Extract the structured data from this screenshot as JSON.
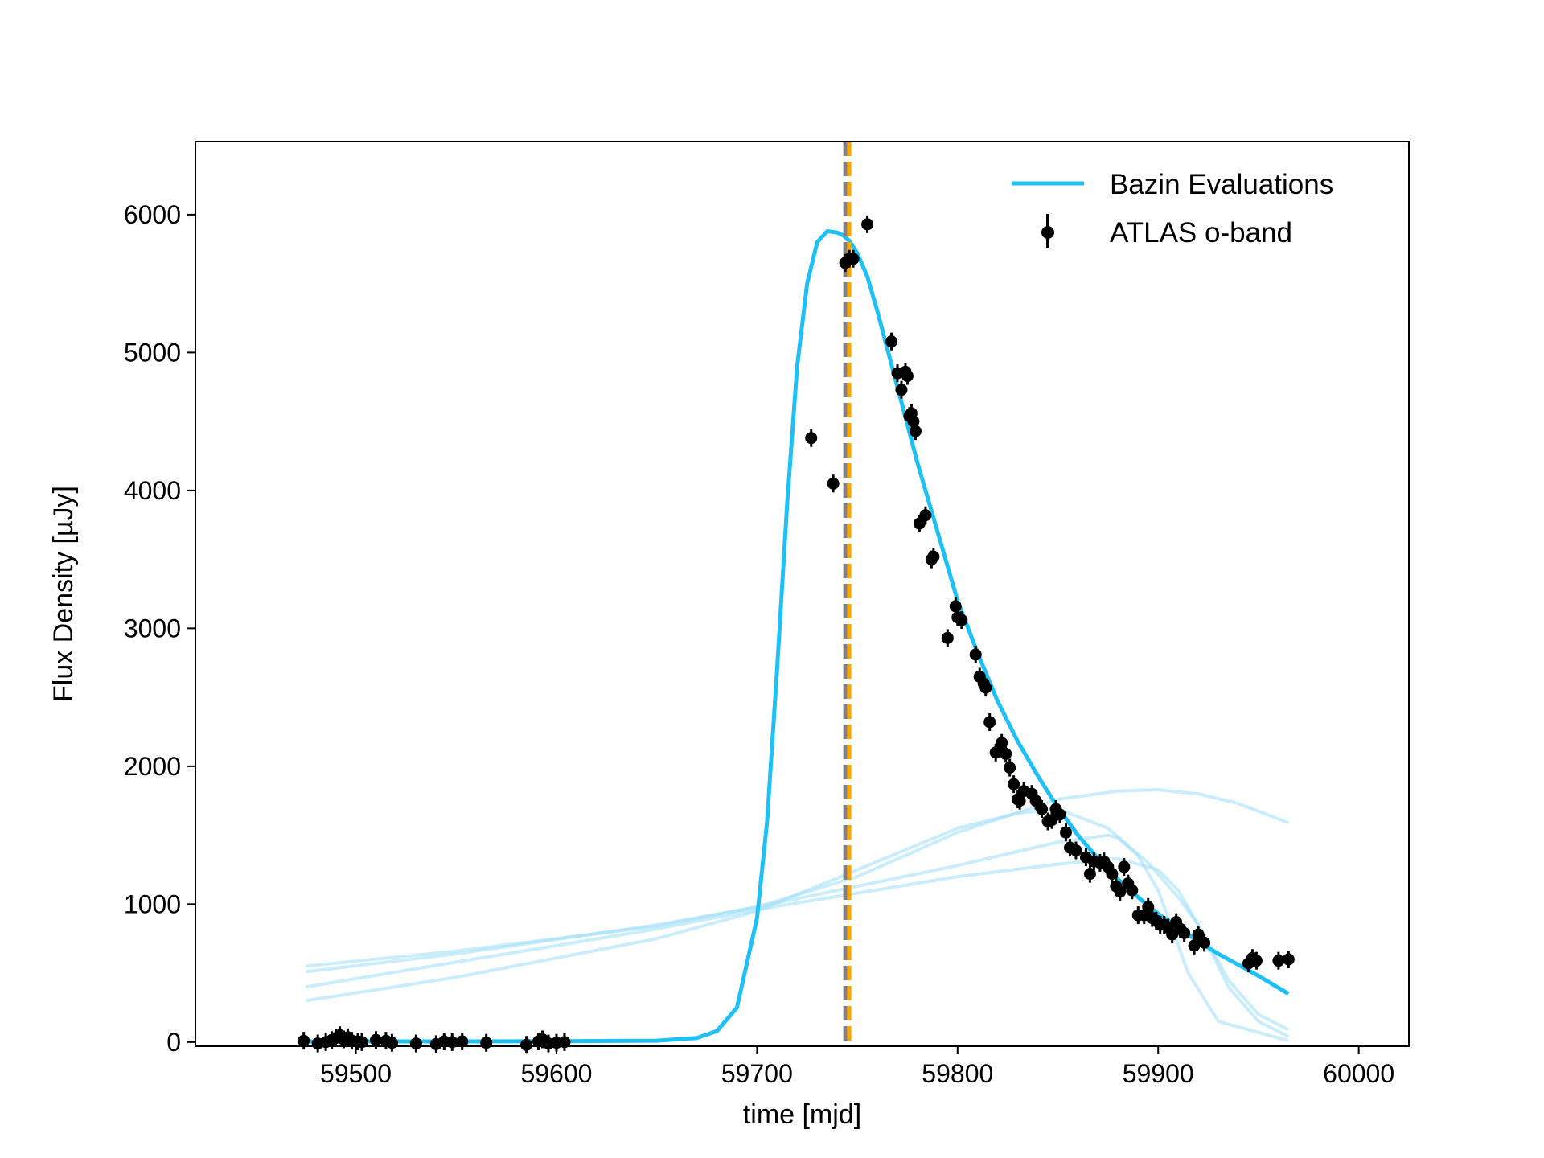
{
  "chart_data": {
    "type": "scatter",
    "title": "",
    "xlabel": "time [mjd]",
    "ylabel": "Flux Density [µJy]",
    "xlim": [
      59420,
      60025
    ],
    "ylim": [
      -30,
      6530
    ],
    "xticks": [
      59500,
      59600,
      59700,
      59800,
      59900,
      60000
    ],
    "xtick_labels": [
      "59500",
      "59600",
      "59700",
      "59800",
      "59900",
      "60000"
    ],
    "yticks": [
      0,
      1000,
      2000,
      3000,
      4000,
      5000,
      6000
    ],
    "ytick_labels": [
      "0",
      "1000",
      "2000",
      "3000",
      "4000",
      "5000",
      "6000"
    ],
    "grid": false,
    "legend_position": "top-right",
    "colors": {
      "bazin": "#1ec0f5",
      "bazin_faint": "#9fdff7",
      "points": "#000000",
      "peak_gray": "#808080",
      "peak_orange": "#ffa500"
    },
    "vertical_lines": [
      {
        "x": 59744,
        "style": "dashed",
        "color": "#808080"
      },
      {
        "x": 59746,
        "style": "dashed",
        "color": "#ffa500"
      }
    ],
    "series": [
      {
        "name": "Bazin Evaluations",
        "kind": "line",
        "x": [
          59475,
          59500,
          59550,
          59600,
          59650,
          59670,
          59680,
          59690,
          59700,
          59705,
          59710,
          59715,
          59720,
          59725,
          59730,
          59735,
          59740,
          59743,
          59746,
          59750,
          59755,
          59760,
          59770,
          59780,
          59790,
          59800,
          59810,
          59820,
          59830,
          59840,
          59850,
          59860,
          59870,
          59880,
          59890,
          59900,
          59910,
          59920,
          59930,
          59940,
          59950,
          59965
        ],
        "y": [
          5,
          5,
          5,
          6,
          10,
          30,
          80,
          250,
          900,
          1600,
          2700,
          3900,
          4900,
          5500,
          5800,
          5880,
          5870,
          5850,
          5810,
          5720,
          5550,
          5300,
          4750,
          4200,
          3700,
          3200,
          2820,
          2470,
          2180,
          1930,
          1700,
          1500,
          1330,
          1180,
          1050,
          930,
          830,
          730,
          640,
          560,
          480,
          350
        ]
      },
      {
        "name": "",
        "kind": "line",
        "opacity": 0.25,
        "x": [
          59475,
          59550,
          59650,
          59700,
          59750,
          59800,
          59850,
          59875,
          59880,
          59890,
          59900,
          59915,
          59930,
          59965
        ],
        "y": [
          510,
          640,
          850,
          980,
          1130,
          1280,
          1450,
          1500,
          1480,
          1350,
          1100,
          500,
          150,
          10
        ]
      },
      {
        "name": "",
        "kind": "line",
        "opacity": 0.25,
        "x": [
          59475,
          59550,
          59650,
          59700,
          59750,
          59800,
          59850,
          59880,
          59900,
          59910,
          59920,
          59935,
          59950,
          59965
        ],
        "y": [
          400,
          580,
          820,
          960,
          1080,
          1200,
          1290,
          1330,
          1250,
          1100,
          850,
          400,
          150,
          40
        ]
      },
      {
        "name": "",
        "kind": "line",
        "opacity": 0.25,
        "x": [
          59475,
          59550,
          59650,
          59700,
          59750,
          59800,
          59830,
          59850,
          59875,
          59895,
          59910,
          59920,
          59935,
          59950,
          59965
        ],
        "y": [
          300,
          470,
          750,
          950,
          1250,
          1550,
          1660,
          1690,
          1550,
          1300,
          1050,
          850,
          450,
          200,
          90
        ]
      },
      {
        "name": "",
        "kind": "line",
        "opacity": 0.25,
        "x": [
          59475,
          59550,
          59650,
          59700,
          59750,
          59800,
          59850,
          59880,
          59900,
          59920,
          59940,
          59965
        ],
        "y": [
          550,
          660,
          840,
          980,
          1200,
          1520,
          1760,
          1820,
          1830,
          1800,
          1730,
          1590
        ]
      },
      {
        "name": "ATLAS o-band",
        "kind": "errorbar",
        "x": [
          59474,
          59481,
          59485,
          59488,
          59490,
          59492,
          59494,
          59496,
          59498,
          59501,
          59503,
          59510,
          59515,
          59518,
          59530,
          59540,
          59544,
          59548,
          59553,
          59565,
          59585,
          59591,
          59593,
          59596,
          59600,
          59604,
          59727,
          59738,
          59744,
          59746,
          59748,
          59755,
          59767,
          59770,
          59772,
          59774,
          59775,
          59776,
          59777,
          59778,
          59779,
          59781,
          59784,
          59787,
          59788,
          59795,
          59799,
          59800,
          59802,
          59809,
          59811,
          59813,
          59814,
          59816,
          59819,
          59822,
          59824,
          59826,
          59828,
          59830,
          59831,
          59833,
          59837,
          59839,
          59842,
          59845,
          59847,
          59849,
          59851,
          59854,
          59856,
          59859,
          59864,
          59866,
          59868,
          59871,
          59873,
          59875,
          59877,
          59879,
          59881,
          59883,
          59885,
          59887,
          59890,
          59893,
          59895,
          59897,
          59899,
          59901,
          59903,
          59905,
          59907,
          59909,
          59911,
          59913,
          59918,
          59920,
          59923,
          59945,
          59947,
          59949,
          59960,
          59965
        ],
        "y": [
          10,
          -10,
          0,
          15,
          30,
          50,
          20,
          35,
          10,
          5,
          0,
          15,
          10,
          -5,
          -10,
          -15,
          5,
          0,
          5,
          -5,
          -20,
          5,
          20,
          -10,
          -5,
          0,
          4380,
          4050,
          5650,
          5680,
          5680,
          5930,
          5080,
          4850,
          4730,
          4860,
          4830,
          4540,
          4560,
          4500,
          4430,
          3760,
          3820,
          3500,
          3520,
          2930,
          3160,
          3080,
          3060,
          2810,
          2650,
          2600,
          2570,
          2320,
          2100,
          2170,
          2090,
          1990,
          1870,
          1760,
          1750,
          1820,
          1800,
          1750,
          1690,
          1600,
          1610,
          1690,
          1650,
          1520,
          1410,
          1390,
          1340,
          1220,
          1310,
          1300,
          1310,
          1270,
          1220,
          1130,
          1090,
          1270,
          1150,
          1100,
          920,
          920,
          980,
          900,
          880,
          850,
          850,
          830,
          780,
          870,
          820,
          790,
          700,
          780,
          720,
          570,
          610,
          590,
          590,
          600
        ]
      }
    ]
  }
}
